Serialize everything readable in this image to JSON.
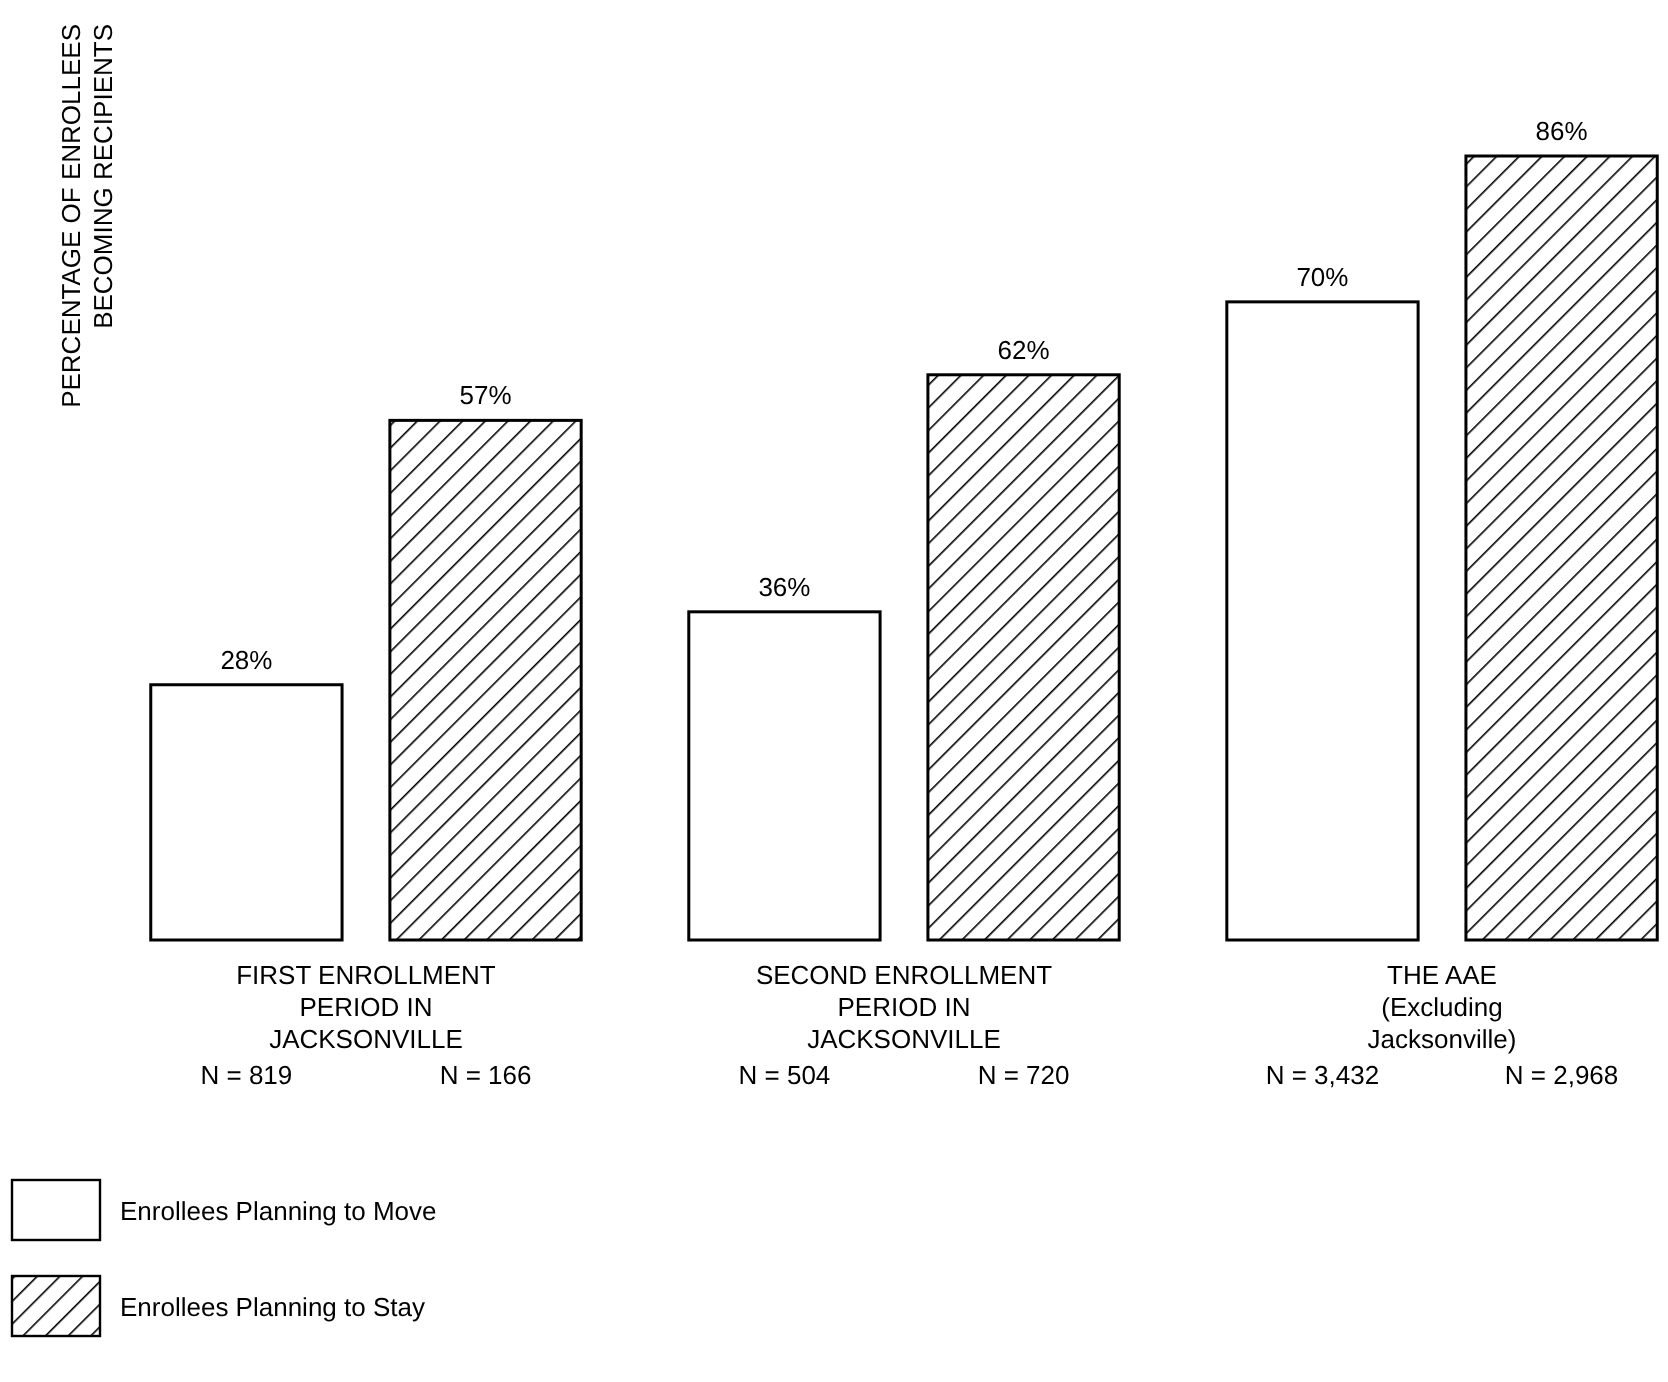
{
  "chart_data": {
    "type": "bar",
    "ylabel": "PERCENTAGE OF ENROLLEES\nBECOMING RECIPIENTS",
    "categories": [
      "FIRST ENROLLMENT\nPERIOD IN\nJACKSONVILLE",
      "SECOND ENROLLMENT\nPERIOD IN\nJACKSONVILLE",
      "THE AAE\n(Excluding\nJacksonville)"
    ],
    "series": [
      {
        "name": "Enrollees Planning to Move",
        "color": "#ffffff",
        "values": [
          28,
          36,
          70
        ],
        "value_labels": [
          "28%",
          "36%",
          "70%"
        ]
      },
      {
        "name": "Enrollees Planning to Stay",
        "color": "#000000",
        "values": [
          57,
          62,
          86
        ],
        "value_labels": [
          "57%",
          "62%",
          "86%"
        ]
      }
    ],
    "annotations": [
      "N = 819",
      "N = 166",
      "N = 504",
      "N = 720",
      "N = 3,432",
      "N = 2,968"
    ],
    "grid": false,
    "legend": "bottom left"
  }
}
